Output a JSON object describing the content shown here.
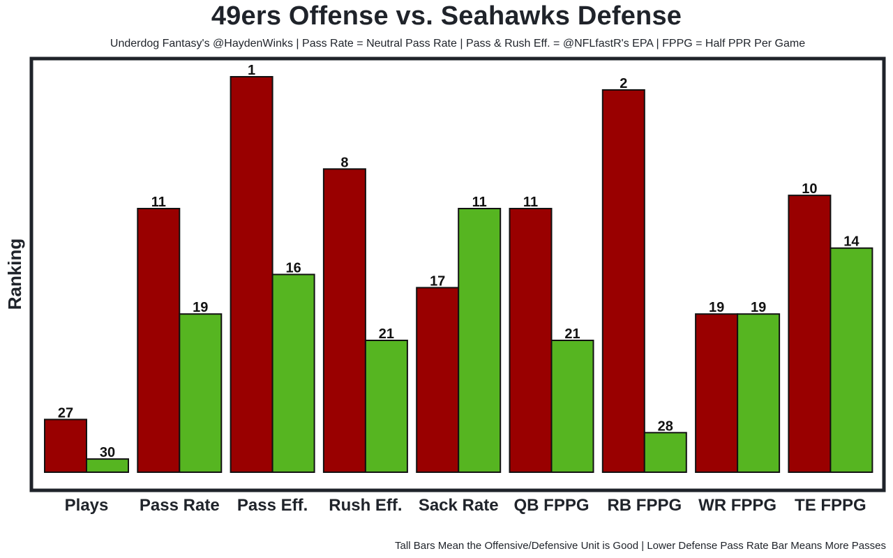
{
  "chart_data": {
    "type": "bar",
    "title": "49ers Offense vs. Seahawks Defense",
    "subtitle": "Underdog Fantasy's @HaydenWinks | Pass Rate = Neutral Pass Rate | Pass & Rush Eff. = @NFLfastR's EPA | FPPG = Half PPR Per Game",
    "footnote": "Tall Bars Mean the Offensive/Defensive Unit is Good | Lower Defense Pass Rate Bar Means More Passes",
    "ylabel": "Ranking",
    "xlabel": "",
    "y_axis": "inverted ranking (1 = tallest bar)",
    "ylim": [
      32,
      0
    ],
    "categories": [
      "Plays",
      "Pass Rate",
      "Pass Eff.",
      "Rush Eff.",
      "Sack Rate",
      "QB FPPG",
      "RB FPPG",
      "WR FPPG",
      "TE FPPG"
    ],
    "series": [
      {
        "name": "49ers Offense",
        "color": "#990000",
        "values": [
          27,
          11,
          1,
          8,
          17,
          11,
          2,
          19,
          10
        ]
      },
      {
        "name": "Seahawks Defense",
        "color": "#56b521",
        "values": [
          30,
          19,
          16,
          21,
          11,
          21,
          28,
          19,
          14
        ]
      }
    ],
    "grid": false,
    "legend": "none"
  }
}
